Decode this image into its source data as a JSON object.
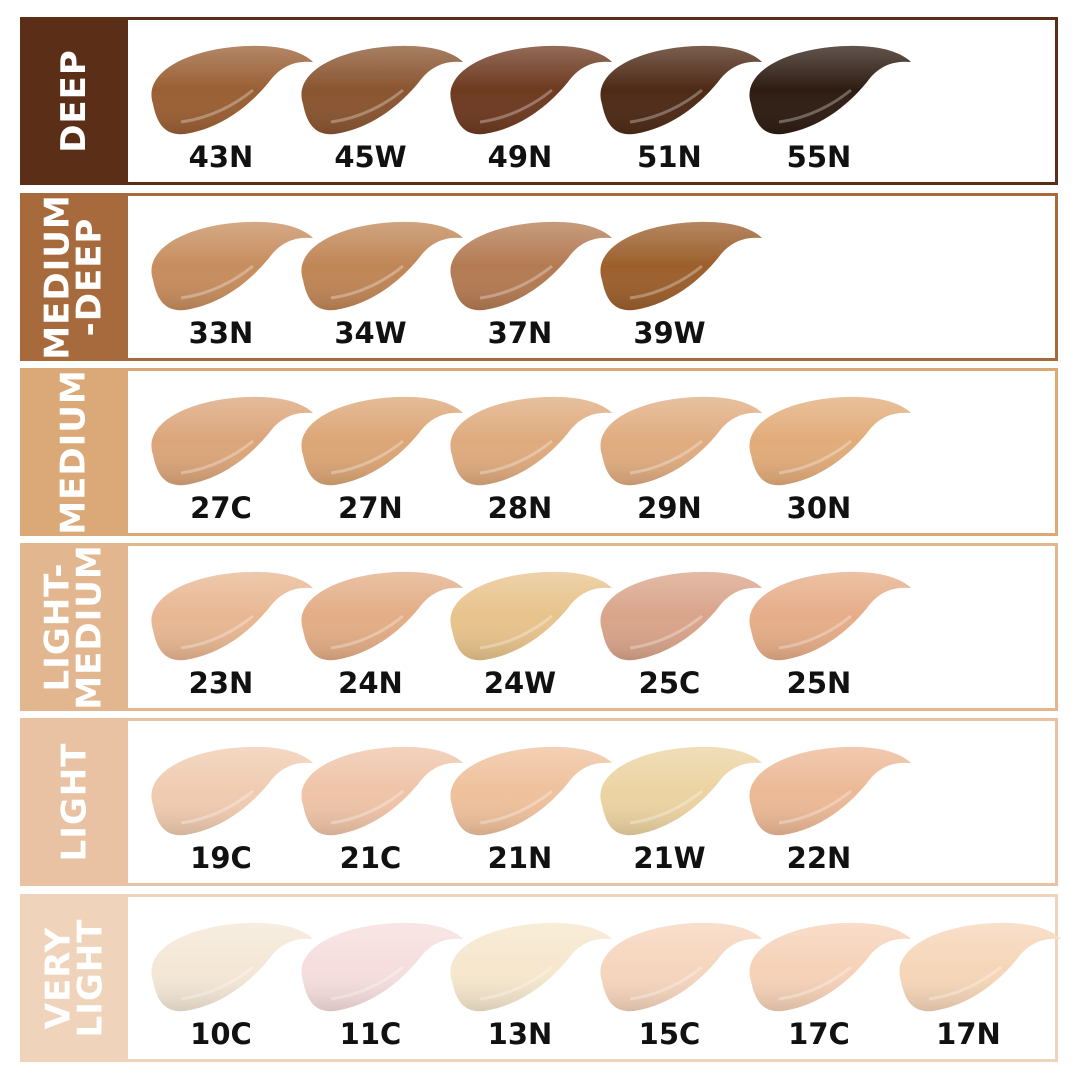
{
  "rows": [
    {
      "category": "DEEP",
      "color": "#5a2e17",
      "shades": [
        {
          "name": "43N",
          "color": "#9a5f34"
        },
        {
          "name": "45W",
          "color": "#8a5530"
        },
        {
          "name": "49N",
          "color": "#6e3a20"
        },
        {
          "name": "51N",
          "color": "#4e2a16"
        },
        {
          "name": "55N",
          "color": "#2e1c12"
        }
      ]
    },
    {
      "category": "MEDIUM\n-DEEP",
      "color": "#a66a3c",
      "shades": [
        {
          "name": "33N",
          "color": "#c78d5e"
        },
        {
          "name": "34W",
          "color": "#c08656"
        },
        {
          "name": "37N",
          "color": "#b47b53"
        },
        {
          "name": "39W",
          "color": "#9c5f2c"
        }
      ]
    },
    {
      "category": "MEDIUM",
      "color": "#dba877",
      "shades": [
        {
          "name": "27C",
          "color": "#dba57a"
        },
        {
          "name": "27N",
          "color": "#dca676"
        },
        {
          "name": "28N",
          "color": "#dfab7e"
        },
        {
          "name": "29N",
          "color": "#e0ac80"
        },
        {
          "name": "30N",
          "color": "#e2ac7a"
        }
      ]
    },
    {
      "category": "LIGHT-\nMEDIUM",
      "color": "#e2b68f",
      "shades": [
        {
          "name": "23N",
          "color": "#e8b792"
        },
        {
          "name": "24N",
          "color": "#e3ad86"
        },
        {
          "name": "24W",
          "color": "#e8c38c"
        },
        {
          "name": "25C",
          "color": "#d9a48a"
        },
        {
          "name": "25N",
          "color": "#e6ad88"
        }
      ]
    },
    {
      "category": "LIGHT",
      "color": "#e9c2a3",
      "shades": [
        {
          "name": "19C",
          "color": "#f0cbb0"
        },
        {
          "name": "21C",
          "color": "#efc4a8"
        },
        {
          "name": "21N",
          "color": "#efc19c"
        },
        {
          "name": "21W",
          "color": "#ecd3a2"
        },
        {
          "name": "22N",
          "color": "#ecb996"
        }
      ]
    },
    {
      "category": "VERY\nLIGHT",
      "color": "#f0d3bb",
      "shades": [
        {
          "name": "10C",
          "color": "#f4e7d6"
        },
        {
          "name": "11C",
          "color": "#f5dedd"
        },
        {
          "name": "13N",
          "color": "#f6e7cd"
        },
        {
          "name": "15C",
          "color": "#f6d5bd"
        },
        {
          "name": "17C",
          "color": "#f6d2b8"
        },
        {
          "name": "17N",
          "color": "#f6d6b8"
        }
      ]
    }
  ]
}
